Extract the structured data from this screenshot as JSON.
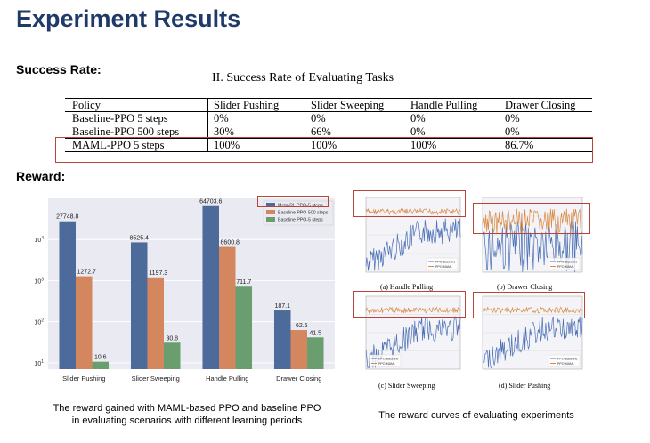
{
  "title": "Experiment Results",
  "success_label": "Success Rate:",
  "reward_label": "Reward:",
  "table": {
    "caption": "II. Success Rate of Evaluating Tasks",
    "headers": [
      "Policy",
      "Slider Pushing",
      "Slider Sweeping",
      "Handle Pulling",
      "Drawer Closing"
    ],
    "rows": [
      [
        "Baseline-PPO 5 steps",
        "0%",
        "0%",
        "0%",
        "0%"
      ],
      [
        "Baseline-PPO 500 steps",
        "30%",
        "66%",
        "0%",
        "0%"
      ],
      [
        "MAML-PPO 5 steps",
        "100%",
        "100%",
        "100%",
        "86.7%"
      ]
    ]
  },
  "colors": {
    "title": "#1f3a68",
    "highlight_box": "#b8433a",
    "meta_rl": "#4c6a9a",
    "baseline_500": "#d4875e",
    "baseline_5": "#6a9e6f",
    "chart_bg": "#eaeaf2",
    "curve_blue": "#4a6fb5",
    "curve_orange": "#d98a45"
  },
  "chart_data": {
    "type": "bar",
    "yscale": "log",
    "ylim": [
      7,
      100000
    ],
    "yticks": [
      {
        "value": 10,
        "label": "10^1"
      },
      {
        "value": 100,
        "label": "10^2"
      },
      {
        "value": 1000,
        "label": "10^3"
      },
      {
        "value": 10000,
        "label": "10^4"
      }
    ],
    "categories": [
      "Slider Pushing",
      "Slider Sweeping",
      "Handle Pulling",
      "Drawer Closing"
    ],
    "legend_position": "top-right",
    "series": [
      {
        "name": "Meta-RL PPO-5 steps",
        "values": [
          27748.8,
          8525.4,
          64703.6,
          187.1
        ],
        "labels": [
          "27748.8",
          "8525.4",
          "64703.6",
          "187.1"
        ]
      },
      {
        "name": "Baseline PPO-500 steps",
        "values": [
          1272.7,
          1197.3,
          6600.8,
          62.6
        ],
        "labels": [
          "1272.7",
          "1197.3",
          "6600.8",
          "62.6"
        ]
      },
      {
        "name": "Baseline PPO-5 steps",
        "values": [
          10.6,
          30.8,
          711.7,
          41.5
        ],
        "labels": [
          "10.6",
          "30.8",
          "711.7",
          "41.5"
        ]
      }
    ]
  },
  "bar_caption_line1": "The reward gained with MAML-based PPO and baseline PPO",
  "bar_caption_line2": "in evaluating scenarios with different learning periods",
  "curves_caption": "The reward curves of evaluating experiments",
  "curve_panels": [
    {
      "caption": "(a) Handle Pulling",
      "legend": [
        "PPO Baseline",
        "PPO MAML"
      ],
      "legend_pos": "bottom-right",
      "mode": "normal"
    },
    {
      "caption": "(b) Drawer Closing",
      "legend": [
        "PPO Baseline",
        "PPO MAML"
      ],
      "legend_pos": "bottom-right",
      "mode": "chaos"
    },
    {
      "caption": "(c) Slider Sweeping",
      "legend": [
        "PPO Baseline",
        "PPO MAML"
      ],
      "legend_pos": "bottom-left",
      "mode": "normal"
    },
    {
      "caption": "(d) Slider Pushing",
      "legend": [
        "PPO Baseline",
        "PPO MAML"
      ],
      "legend_pos": "bottom-right",
      "mode": "normal"
    }
  ]
}
